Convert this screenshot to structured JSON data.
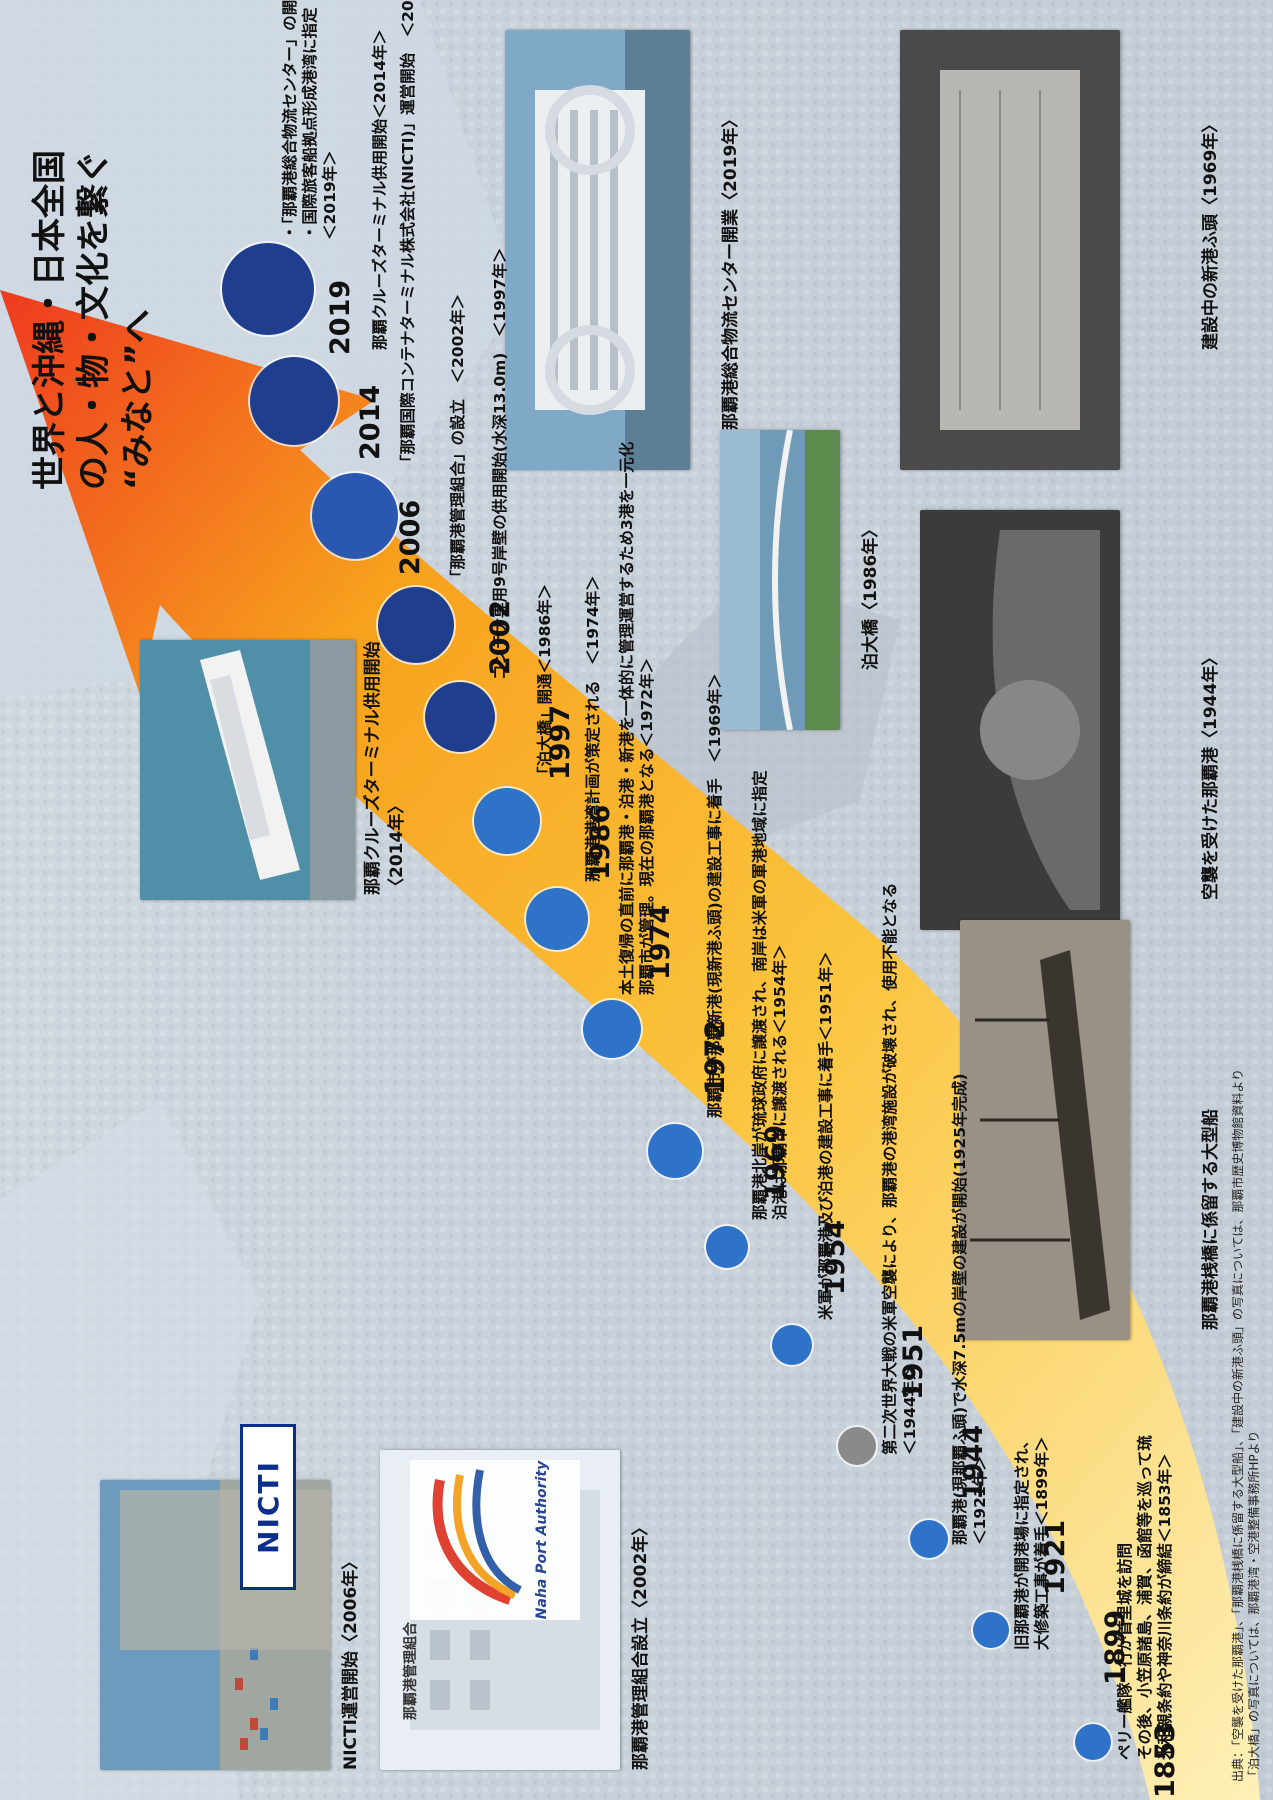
{
  "title": {
    "line1": "世界と沖縄・日本全国",
    "line2": "の人・物・文化を繋ぐ",
    "line3": "“みなと”へ"
  },
  "colors": {
    "arrow_top": "#ee3a1f",
    "arrow_mid": "#f7a11d",
    "arrow_bottom": "#fdf0b8",
    "dot_light": "#2f73c8",
    "dot_dark": "#1f3f8e",
    "dot_war": "#8a8a8a"
  },
  "years": [
    "1853",
    "1899",
    "1921",
    "1944",
    "1951",
    "1954",
    "1969",
    "1972",
    "1974",
    "1986",
    "1997",
    "2002",
    "2006",
    "2014",
    "2019"
  ],
  "events": {
    "e1853": [
      "ペリー艦隊一行が首里城を訪問",
      "その後、小笠原諸島、浦賀、函館等を巡って琉",
      "米和親条約や神奈川条約が締結＜1853年＞"
    ],
    "e1899": [
      "旧那覇港が開港場に指定され、",
      "大修築工事が着手＜1899年＞"
    ],
    "e1921": [
      "那覇港(現那覇ふ頭)で水深7.5mの岸壁の建設が開始(1925年完成)",
      "＜1921年＞"
    ],
    "e1944": [
      "第二次世界大戦の米軍空襲により、那覇港の港湾施設が破壊され、使用不能となる",
      "＜1944年＞"
    ],
    "e1951": [
      "米軍が那覇港及び泊港の建設工事に着手＜1951年＞"
    ],
    "e1954": [
      "那覇港北岸が琉球政府に譲渡され、南岸は米軍の軍港地域に指定",
      "泊港は那覇市に譲渡される＜1954年＞"
    ],
    "e1969": [
      "那覇市が那覇新港(現新港ふ頭)の建設工事に着手　＜1969年＞"
    ],
    "e1972": [
      "本土復帰の直前に那覇港・泊港・新港を一体的に管理運営するため3港を一元化",
      "那覇市が管理。現在の那覇港となる＜1972年＞"
    ],
    "e1974": [
      "那覇港港湾計画が策定される　＜1974年＞"
    ],
    "e1986": [
      "「泊大橋」開通＜1986年＞"
    ],
    "e1997": [
      "コンテナ専用9号岸壁の供用開始(水深13.0m)　＜1997年＞"
    ],
    "e2002": [
      "「那覇港管理組合」の設立　＜2002年＞"
    ],
    "e2006": [
      "「那覇国際コンテナターミナル株式会社(NICTI)」運営開始　＜2006年＞"
    ],
    "e2014": [
      "那覇クルーズターミナル供用開始＜2014年＞"
    ],
    "e2019": [
      "・「那覇港総合物流センター」の開業",
      "・国際旅客船拠点形成港湾に指定",
      "＜2019年＞"
    ]
  },
  "photos": {
    "nicti": {
      "caption1": "NICTI運営開始〈2006年〉",
      "logo": "NICTI"
    },
    "authority": {
      "caption1": "那覇港管理組合設立〈2002年〉",
      "logo_text": "Naha Port Authority",
      "building_sign": "那覇港管理組合"
    },
    "cruise": {
      "caption1": "那覇クルーズターミナル供用開始",
      "caption2": "〈2014年〉"
    },
    "logistics": {
      "caption1": "那覇港総合物流センター開業〈2019年〉"
    },
    "tomari": {
      "caption1": "泊大橋〈1986年〉"
    },
    "shinko": {
      "caption1": "建設中の新港ふ頭〈1969年〉"
    },
    "ship": {
      "caption1": "那覇港桟橋に係留する大型船"
    },
    "bombed": {
      "caption1": "空襲を受けた那覇港〈1944年〉"
    }
  },
  "source": {
    "line1": "出典：「空襲を受けた那覇港」、「那覇港桟橋に係留する大型船」、「建設中の新港ふ頭」の写真については、那覇市歴史博物館資料より",
    "line2": "「泊大橋」の写真については、那覇港湾・空港整備事務所HPより"
  }
}
